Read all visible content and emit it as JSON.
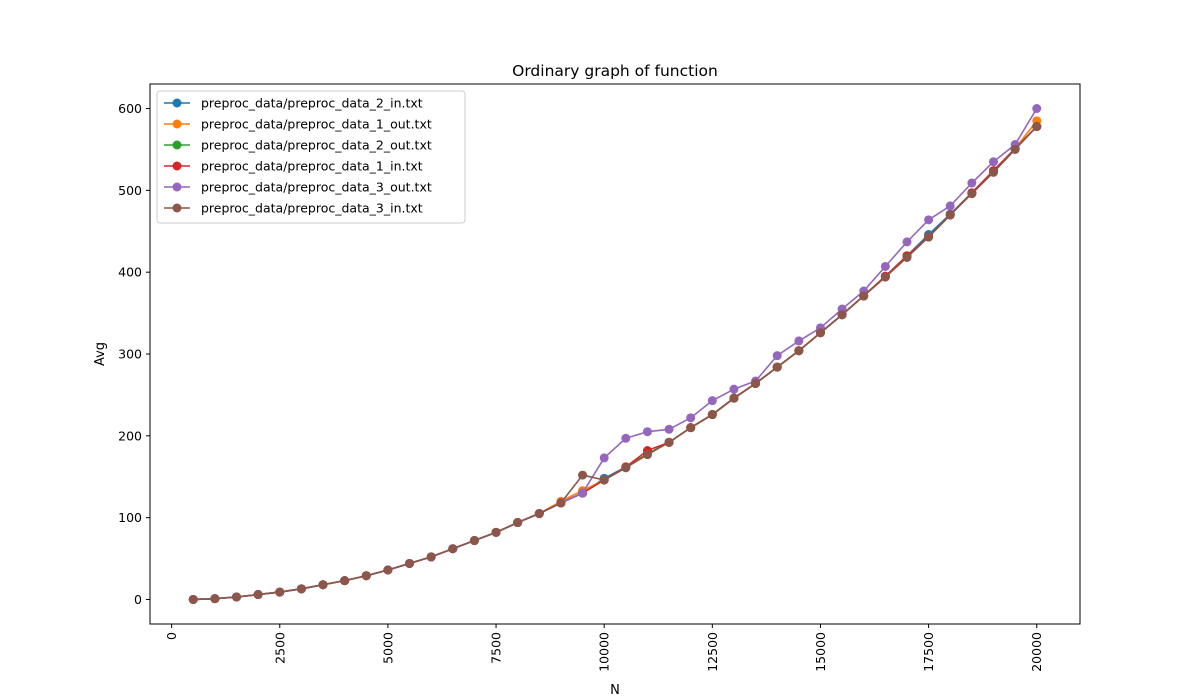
{
  "chart_data": {
    "type": "line",
    "title": "Ordinary graph of function",
    "xlabel": "N",
    "ylabel": "Avg",
    "xlim": [
      -500,
      21000
    ],
    "ylim": [
      -30,
      630
    ],
    "xticks": [
      "0",
      "2500",
      "5000",
      "7500",
      "10000",
      "12500",
      "15000",
      "17500",
      "20000"
    ],
    "xtick_values": [
      0,
      2500,
      5000,
      7500,
      10000,
      12500,
      15000,
      17500,
      20000
    ],
    "yticks": [
      "0",
      "100",
      "200",
      "300",
      "400",
      "500",
      "600"
    ],
    "ytick_values": [
      0,
      100,
      200,
      300,
      400,
      500,
      600
    ],
    "xtick_rotation": 90,
    "grid": false,
    "legend_position": "top-left",
    "marker": "circle",
    "x": [
      500,
      1000,
      1500,
      2000,
      2500,
      3000,
      3500,
      4000,
      4500,
      5000,
      5500,
      6000,
      6500,
      7000,
      7500,
      8000,
      8500,
      9000,
      9500,
      10000,
      10500,
      11000,
      11500,
      12000,
      12500,
      13000,
      13500,
      14000,
      14500,
      15000,
      15500,
      16000,
      16500,
      17000,
      17500,
      18000,
      18500,
      19000,
      19500,
      20000
    ],
    "series": [
      {
        "name": "preproc_data/preproc_data_2_in.txt",
        "color": "#1f77b4",
        "values": [
          0,
          1,
          3,
          6,
          9,
          13,
          18,
          23,
          29,
          36,
          44,
          52,
          62,
          72,
          82,
          94,
          105,
          118,
          130,
          148,
          162,
          178,
          192,
          210,
          226,
          246,
          264,
          284,
          304,
          326,
          348,
          371,
          395,
          420,
          446,
          471,
          497,
          524,
          551,
          578
        ]
      },
      {
        "name": "preproc_data/preproc_data_1_out.txt",
        "color": "#ff7f0e",
        "values": [
          0,
          1,
          3,
          6,
          9,
          13,
          18,
          23,
          29,
          36,
          44,
          52,
          62,
          72,
          82,
          94,
          105,
          120,
          133,
          146,
          162,
          178,
          192,
          210,
          226,
          246,
          264,
          284,
          304,
          326,
          348,
          371,
          395,
          420,
          443,
          470,
          497,
          524,
          551,
          585
        ]
      },
      {
        "name": "preproc_data/preproc_data_2_out.txt",
        "color": "#2ca02c",
        "values": [
          0,
          1,
          3,
          6,
          9,
          13,
          18,
          23,
          29,
          36,
          44,
          52,
          62,
          72,
          82,
          94,
          105,
          118,
          130,
          146,
          161,
          178,
          192,
          210,
          226,
          246,
          264,
          284,
          304,
          326,
          348,
          371,
          395,
          420,
          443,
          470,
          497,
          524,
          551,
          578
        ]
      },
      {
        "name": "preproc_data/preproc_data_1_in.txt",
        "color": "#d62728",
        "values": [
          0,
          1,
          3,
          6,
          9,
          13,
          18,
          23,
          29,
          36,
          44,
          52,
          62,
          72,
          82,
          94,
          105,
          118,
          130,
          146,
          162,
          182,
          192,
          210,
          226,
          246,
          264,
          284,
          304,
          326,
          348,
          371,
          395,
          420,
          443,
          470,
          497,
          524,
          551,
          578
        ]
      },
      {
        "name": "preproc_data/preproc_data_3_out.txt",
        "color": "#9467bd",
        "values": [
          0,
          1,
          3,
          6,
          9,
          13,
          18,
          23,
          29,
          36,
          44,
          52,
          62,
          72,
          82,
          94,
          105,
          118,
          130,
          173,
          197,
          205,
          208,
          222,
          243,
          257,
          267,
          298,
          316,
          332,
          355,
          377,
          407,
          437,
          464,
          481,
          509,
          535,
          556,
          600
        ]
      },
      {
        "name": "preproc_data/preproc_data_3_in.txt",
        "color": "#8c564b",
        "values": [
          0,
          1,
          3,
          6,
          9,
          13,
          18,
          23,
          29,
          36,
          44,
          52,
          62,
          72,
          82,
          94,
          105,
          118,
          152,
          146,
          161,
          177,
          192,
          210,
          226,
          246,
          264,
          284,
          304,
          326,
          348,
          371,
          394,
          418,
          443,
          470,
          496,
          522,
          550,
          578
        ]
      }
    ]
  }
}
